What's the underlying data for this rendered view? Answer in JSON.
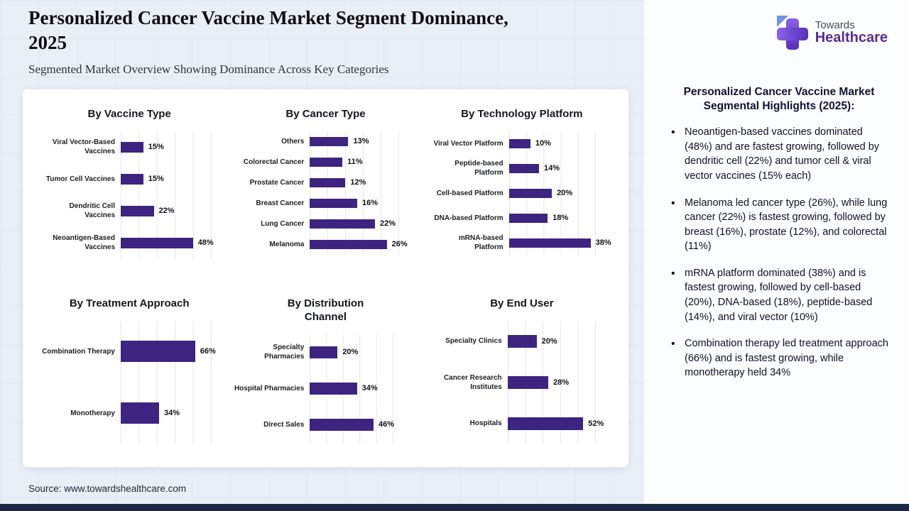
{
  "header": {
    "title": "Personalized Cancer Vaccine Market Segment Dominance, 2025",
    "subtitle": "Segmented Market Overview Showing Dominance Across Key Categories"
  },
  "logo": {
    "line1": "Towards",
    "line2": "Healthcare"
  },
  "sidebar": {
    "heading": "Personalized Cancer Vaccine Market Segmental Highlights (2025):",
    "bullets": [
      "Neoantigen-based vaccines dominated (48%) and are fastest growing, followed by dendritic cell (22%) and tumor cell & viral vector vaccines (15% each)",
      "Melanoma led cancer type (26%), while lung cancer (22%) is fastest growing, followed by breast (16%), prostate (12%), and colorectal (11%)",
      "mRNA platform dominated (38%) and is fastest growing, followed by cell-based (20%), DNA-based (18%), peptide-based (14%), and viral vector (10%)",
      "Combination therapy led treatment approach (66%) and is fastest growing, while monotherapy held 34%"
    ]
  },
  "footer": {
    "source": "Source: www.towardshealthcare.com"
  },
  "colors": {
    "bar": "#3D2480",
    "accent_purple": "#5B2D90",
    "bottom_bar": "#1B2742",
    "background": "#E9EFF7"
  },
  "chart_data": [
    {
      "type": "bar",
      "orientation": "horizontal",
      "title": "By Vaccine Type",
      "categories": [
        "Viral Vector-Based Vaccines",
        "Tumor Cell Vaccines",
        "Dendritic Cell Vaccines",
        "Neoantigen-Based Vaccines"
      ],
      "values": [
        15,
        15,
        22,
        48
      ],
      "unit": "%",
      "xlim": [
        0,
        60
      ],
      "grid": true,
      "legend": false,
      "bar_color": "#3D2480"
    },
    {
      "type": "bar",
      "orientation": "horizontal",
      "title": "By Cancer Type",
      "categories": [
        "Others",
        "Colorectal Cancer",
        "Prostate Cancer",
        "Breast Cancer",
        "Lung Cancer",
        "Melanoma"
      ],
      "values": [
        13,
        11,
        12,
        16,
        22,
        26
      ],
      "unit": "%",
      "xlim": [
        0,
        30
      ],
      "grid": true,
      "legend": false,
      "bar_color": "#3D2480"
    },
    {
      "type": "bar",
      "orientation": "horizontal",
      "title": "By Technology Platform",
      "categories": [
        "Viral Vector Platform",
        "Peptide-based Platform",
        "Cell-based Platform",
        "DNA-based Platform",
        "mRNA-based Platform"
      ],
      "values": [
        10,
        14,
        20,
        18,
        38
      ],
      "unit": "%",
      "xlim": [
        0,
        40
      ],
      "grid": true,
      "legend": false,
      "bar_color": "#3D2480"
    },
    {
      "type": "bar",
      "orientation": "horizontal",
      "title": "By Treatment Approach",
      "categories": [
        "Combination Therapy",
        "Monotherapy"
      ],
      "values": [
        66,
        34
      ],
      "unit": "%",
      "xlim": [
        0,
        80
      ],
      "grid": true,
      "legend": false,
      "bar_color": "#3D2480"
    },
    {
      "type": "bar",
      "orientation": "horizontal",
      "title": "By Distribution Channel",
      "categories": [
        "Specialty Pharmacies",
        "Hospital Pharmacies",
        "Direct Sales"
      ],
      "values": [
        20,
        34,
        46
      ],
      "unit": "%",
      "xlim": [
        0,
        60
      ],
      "grid": true,
      "legend": false,
      "bar_color": "#3D2480"
    },
    {
      "type": "bar",
      "orientation": "horizontal",
      "title": "By End User",
      "categories": [
        "Specialty Clinics",
        "Cancer Research Institutes",
        "Hospitals"
      ],
      "values": [
        20,
        28,
        52
      ],
      "unit": "%",
      "xlim": [
        0,
        60
      ],
      "grid": true,
      "legend": false,
      "bar_color": "#3D2480"
    }
  ]
}
